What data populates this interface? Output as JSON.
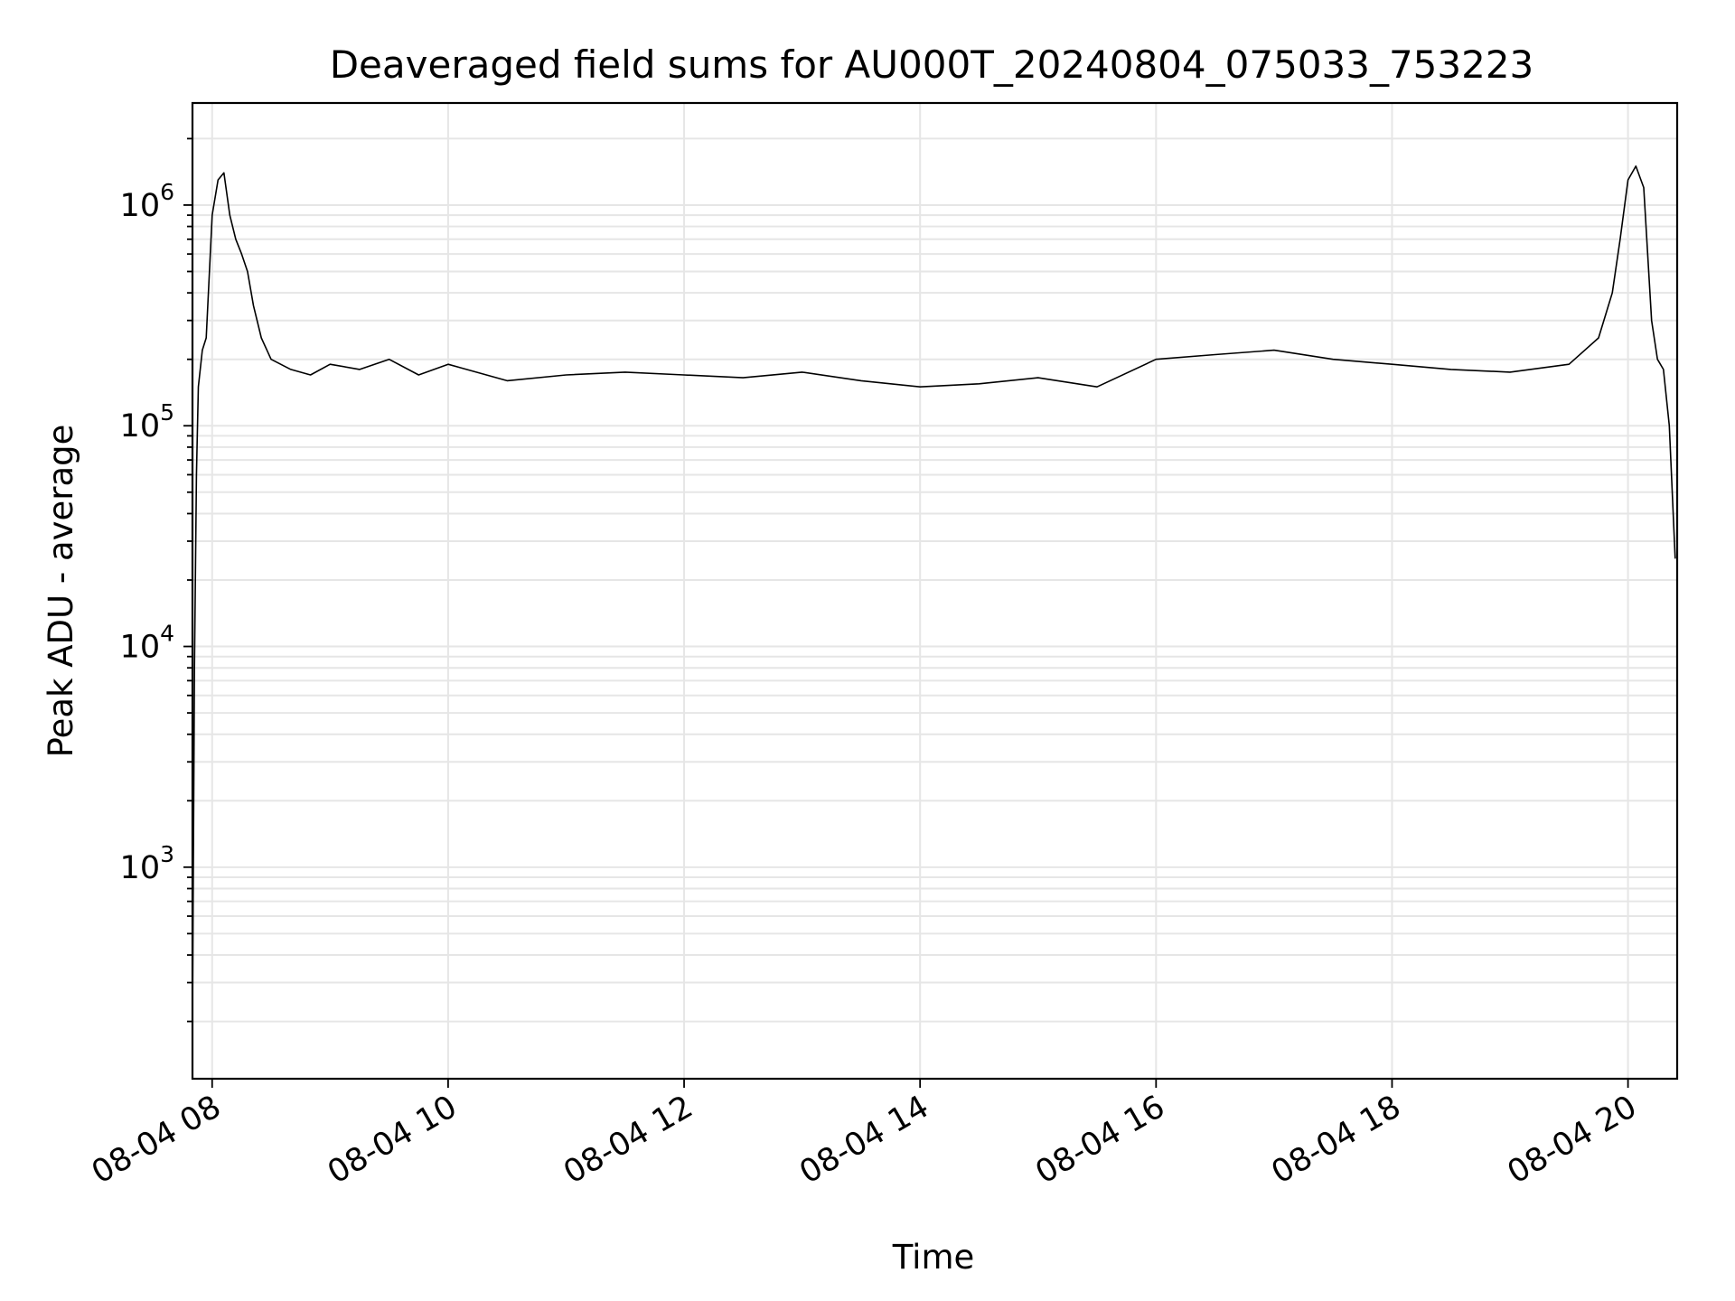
{
  "chart_data": {
    "type": "line",
    "title": "Deaveraged field sums for AU000T_20240804_075033_753223",
    "xlabel": "Time",
    "ylabel": "Peak ADU - average",
    "yscale": "log",
    "ylim": [
      110,
      2900000
    ],
    "xlim": [
      "2024-08-04 07:50",
      "2024-08-04 20:25"
    ],
    "grid": true,
    "line_color": "#000000",
    "x_ticks": [
      {
        "label": "08-04 08",
        "value": "2024-08-04 08:00"
      },
      {
        "label": "08-04 10",
        "value": "2024-08-04 10:00"
      },
      {
        "label": "08-04 12",
        "value": "2024-08-04 12:00"
      },
      {
        "label": "08-04 14",
        "value": "2024-08-04 14:00"
      },
      {
        "label": "08-04 16",
        "value": "2024-08-04 16:00"
      },
      {
        "label": "08-04 18",
        "value": "2024-08-04 18:00"
      },
      {
        "label": "08-04 20",
        "value": "2024-08-04 20:00"
      }
    ],
    "y_ticks": [
      {
        "base": "10",
        "exp": "3",
        "value": 1000
      },
      {
        "base": "10",
        "exp": "4",
        "value": 10000
      },
      {
        "base": "10",
        "exp": "5",
        "value": 100000
      },
      {
        "base": "10",
        "exp": "6",
        "value": 1000000
      }
    ],
    "series": [
      {
        "x": [
          "2024-08-04 07:50",
          "2024-08-04 07:51",
          "2024-08-04 07:52",
          "2024-08-04 07:53",
          "2024-08-04 07:55",
          "2024-08-04 07:57",
          "2024-08-04 08:00",
          "2024-08-04 08:03",
          "2024-08-04 08:06",
          "2024-08-04 08:09",
          "2024-08-04 08:12",
          "2024-08-04 08:15",
          "2024-08-04 08:18",
          "2024-08-04 08:21",
          "2024-08-04 08:25",
          "2024-08-04 08:30",
          "2024-08-04 08:40",
          "2024-08-04 08:50",
          "2024-08-04 09:00",
          "2024-08-04 09:15",
          "2024-08-04 09:30",
          "2024-08-04 09:45",
          "2024-08-04 10:00",
          "2024-08-04 10:30",
          "2024-08-04 11:00",
          "2024-08-04 11:30",
          "2024-08-04 12:00",
          "2024-08-04 12:30",
          "2024-08-04 13:00",
          "2024-08-04 13:30",
          "2024-08-04 14:00",
          "2024-08-04 14:30",
          "2024-08-04 15:00",
          "2024-08-04 15:30",
          "2024-08-04 16:00",
          "2024-08-04 16:30",
          "2024-08-04 17:00",
          "2024-08-04 17:30",
          "2024-08-04 18:00",
          "2024-08-04 18:30",
          "2024-08-04 19:00",
          "2024-08-04 19:30",
          "2024-08-04 19:45",
          "2024-08-04 19:52",
          "2024-08-04 19:56",
          "2024-08-04 20:00",
          "2024-08-04 20:04",
          "2024-08-04 20:08",
          "2024-08-04 20:12",
          "2024-08-04 20:15",
          "2024-08-04 20:18",
          "2024-08-04 20:21",
          "2024-08-04 20:24"
        ],
        "y": [
          200,
          8000,
          60000,
          150000,
          220000,
          250000,
          900000,
          1300000,
          1400000,
          900000,
          700000,
          600000,
          500000,
          350000,
          250000,
          200000,
          180000,
          170000,
          190000,
          180000,
          200000,
          170000,
          190000,
          160000,
          170000,
          175000,
          170000,
          165000,
          175000,
          160000,
          150000,
          155000,
          165000,
          150000,
          200000,
          210000,
          220000,
          200000,
          190000,
          180000,
          175000,
          190000,
          250000,
          400000,
          700000,
          1300000,
          1500000,
          1200000,
          300000,
          200000,
          180000,
          100000,
          25000
        ]
      }
    ]
  }
}
